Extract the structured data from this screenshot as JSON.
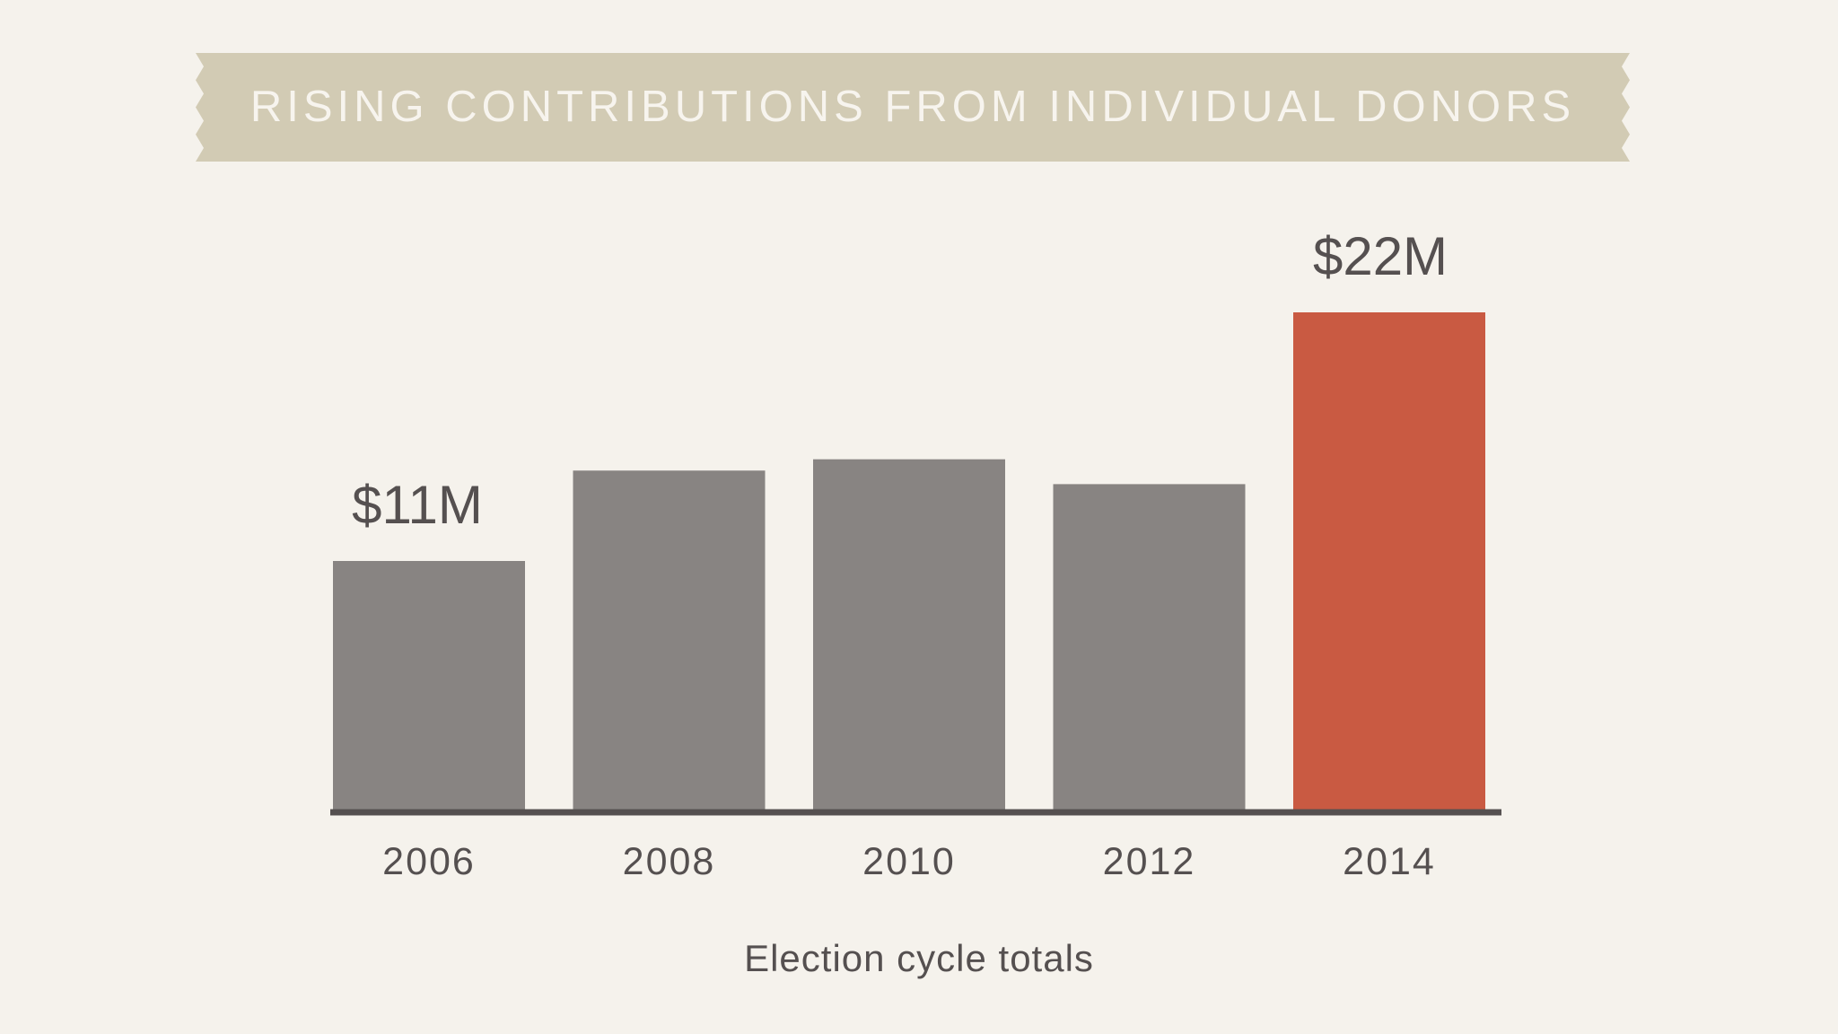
{
  "title": "RISING CONTRIBUTIONS FROM INDIVIDUAL DONORS",
  "colors": {
    "background": "#f5f2ec",
    "banner": "#d2cbb4",
    "bar_default": "#888482",
    "bar_highlight": "#c95a42",
    "axis": "#555050",
    "text": "#555050"
  },
  "chart_data": {
    "type": "bar",
    "title": "RISING CONTRIBUTIONS FROM INDIVIDUAL DONORS",
    "categories": [
      "2006",
      "2008",
      "2010",
      "2012",
      "2014"
    ],
    "values": [
      11,
      15,
      15.5,
      14.4,
      22
    ],
    "unit": "$M",
    "data_labels": [
      "$11M",
      "",
      "",
      "",
      "$22M"
    ],
    "highlight": [
      "2014"
    ],
    "xlabel": "Election cycle totals",
    "ylabel": "",
    "ylim": [
      0,
      22
    ],
    "grid": false
  }
}
